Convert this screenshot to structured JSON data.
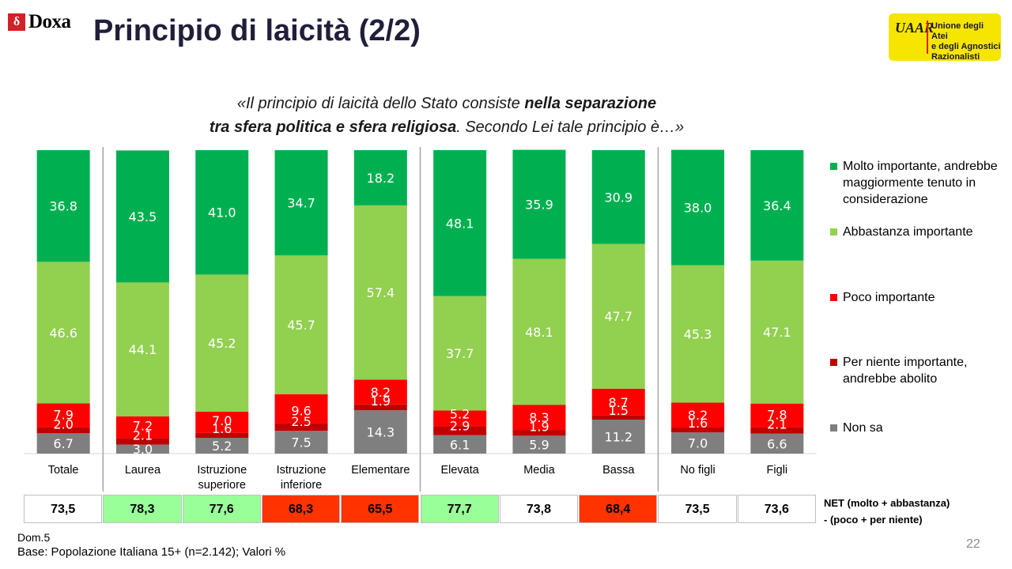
{
  "header": {
    "brand": "Doxa",
    "title": "Principio di laicità (2/2)",
    "partner_logo": {
      "monogram": "UAAR",
      "lines": [
        "Unione degli Atei",
        "e degli Agnostici",
        "Razionalisti"
      ]
    }
  },
  "question": {
    "line1_pre": "«Il principio di laicità dello Stato consiste ",
    "line1_bold": "nella separazione",
    "line2_bold": "tra sfera politica e sfera religiosa",
    "line2_post": ". Secondo Lei tale principio è…»"
  },
  "chart_data": {
    "type": "bar",
    "stacked": true,
    "percent_stacked": true,
    "categories": [
      "Totale",
      "Laurea",
      "Istruzione superiore",
      "Istruzione inferiore",
      "Elementare",
      "Elevata",
      "Media",
      "Bassa",
      "No figli",
      "Figli"
    ],
    "category_lines": [
      [
        "Totale"
      ],
      [
        "Laurea"
      ],
      [
        "Istruzione",
        "superiore"
      ],
      [
        "Istruzione",
        "inferiore"
      ],
      [
        "Elementare"
      ],
      [
        "Elevata"
      ],
      [
        "Media"
      ],
      [
        "Bassa"
      ],
      [
        "No figli"
      ],
      [
        "Figli"
      ]
    ],
    "series": [
      {
        "name": "Non sa",
        "color": "#7f7f7f",
        "values": [
          6.7,
          3.0,
          5.2,
          7.5,
          14.3,
          6.1,
          5.9,
          11.2,
          7.0,
          6.6
        ]
      },
      {
        "name": "Per niente importante, andrebbe abolito",
        "color": "#c00000",
        "values": [
          2.0,
          2.1,
          1.6,
          2.5,
          1.9,
          2.9,
          1.9,
          1.5,
          1.6,
          2.1
        ]
      },
      {
        "name": "Poco importante",
        "color": "#ff0000",
        "values": [
          7.9,
          7.2,
          7.0,
          9.6,
          8.2,
          5.2,
          8.3,
          8.7,
          8.2,
          7.8
        ]
      },
      {
        "name": "Abbastanza importante",
        "color": "#92d050",
        "values": [
          46.6,
          44.1,
          45.2,
          45.7,
          57.4,
          37.7,
          48.1,
          47.7,
          45.3,
          47.1
        ]
      },
      {
        "name": "Molto importante, andrebbe maggiormente tenuto in considerazione",
        "color": "#00b050",
        "values": [
          36.8,
          43.5,
          41.0,
          34.7,
          18.2,
          48.1,
          35.9,
          30.9,
          38.0,
          36.4
        ]
      }
    ],
    "group_separators_after": [
      "Totale",
      "Elementare",
      "Bassa"
    ],
    "legend_position": "right",
    "legend": [
      {
        "label": "Molto importante, andrebbe maggiormente tenuto in considerazione",
        "color": "#00b050"
      },
      {
        "label": "Abbastanza importante",
        "color": "#92d050"
      },
      {
        "label": "Poco importante",
        "color": "#ff0000"
      },
      {
        "label": "Per niente importante, andrebbe abolito",
        "color": "#c00000"
      },
      {
        "label": "Non sa",
        "color": "#7f7f7f"
      }
    ],
    "ylim": [
      0,
      100
    ],
    "grid": false
  },
  "net": {
    "label_line1": "NET (molto + abbastanza)",
    "label_line2": "- (poco + per niente)",
    "values": [
      "73,5",
      "78,3",
      "77,6",
      "68,3",
      "65,5",
      "77,7",
      "73,8",
      "68,4",
      "73,5",
      "73,6"
    ],
    "highlight": [
      "none",
      "positive",
      "positive",
      "negative",
      "negative",
      "positive",
      "none",
      "negative",
      "none",
      "none"
    ],
    "colors": {
      "positive": "#99ff99",
      "negative": "#ff3300",
      "none": "#ffffff"
    }
  },
  "footer": {
    "question_ref": "Dom.5",
    "base": "Base: Popolazione Italiana 15+ (n=2.142); Valori %",
    "page_number": "22"
  }
}
